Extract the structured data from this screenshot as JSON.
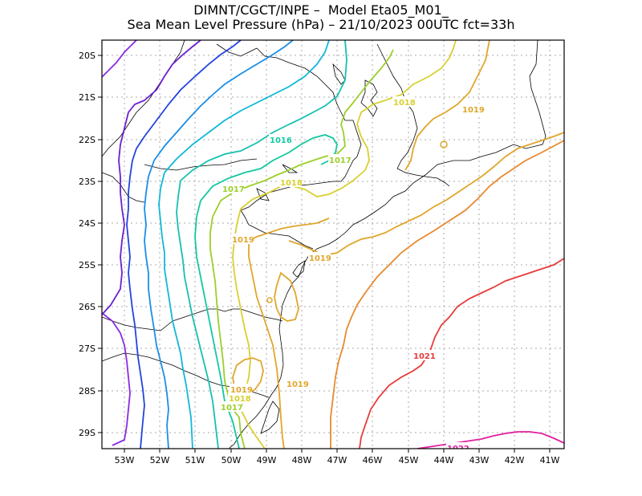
{
  "title": {
    "line1": "DIMNT/CGCT/INPE –  Model Eta05_M01_",
    "line2": "Sea Mean Level Pressure (hPa) – 21/10/2023 00UTC fct=33h"
  },
  "axes": {
    "lon_labels": [
      "53W",
      "52W",
      "51W",
      "50W",
      "49W",
      "48W",
      "47W",
      "46W",
      "45W",
      "44W",
      "43W",
      "42W",
      "41W"
    ],
    "lat_labels": [
      "20S",
      "21S",
      "22S",
      "23S",
      "24S",
      "25S",
      "26S",
      "27S",
      "28S",
      "29S"
    ]
  },
  "contour_labels": [
    {
      "text": "1016",
      "color": "#12c8a0"
    },
    {
      "text": "1017",
      "color": "#9ccf2a"
    },
    {
      "text": "1018",
      "color": "#d8d030"
    },
    {
      "text": "1019",
      "color": "#e0a62c"
    },
    {
      "text": "1017",
      "color": "#9ccf2a"
    },
    {
      "text": "1018",
      "color": "#d8d030"
    },
    {
      "text": "1019",
      "color": "#e0a62c"
    },
    {
      "text": "1019",
      "color": "#e0a62c"
    },
    {
      "text": "1019",
      "color": "#e0a62c"
    },
    {
      "text": "1019",
      "color": "#e0a62c"
    },
    {
      "text": "1018",
      "color": "#d8d030"
    },
    {
      "text": "1017",
      "color": "#9ccf2a"
    },
    {
      "text": "1019",
      "color": "#e0a62c"
    },
    {
      "text": "1021",
      "color": "#e83a3a"
    },
    {
      "text": "1022",
      "color": "#e020a0"
    }
  ]
}
